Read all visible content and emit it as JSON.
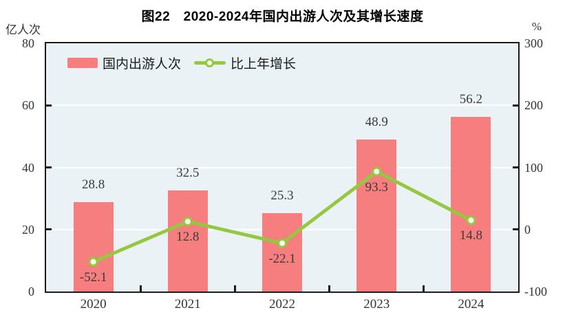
{
  "title": "图22　2020-2024年国内出游人次及其增长速度",
  "chart_data": {
    "type": "bar+line",
    "title": "图22　2020-2024年国内出游人次及其增长速度",
    "categories": [
      "2020",
      "2021",
      "2022",
      "2023",
      "2024"
    ],
    "series": [
      {
        "name": "国内出游人次",
        "type": "bar",
        "axis": "left",
        "unit": "亿人次",
        "values": [
          28.8,
          32.5,
          25.3,
          48.9,
          56.2
        ],
        "labels": [
          "28.8",
          "32.5",
          "25.3",
          "48.9",
          "56.2"
        ],
        "color": "#F67E7E"
      },
      {
        "name": "比上年增长",
        "type": "line",
        "axis": "right",
        "unit": "%",
        "values": [
          -52.1,
          12.8,
          -22.1,
          93.3,
          14.8
        ],
        "labels": [
          "-52.1",
          "12.8",
          "-22.1",
          "93.3",
          "14.8"
        ],
        "color": "#93C83F",
        "marker_fill": "#FDFEF4"
      }
    ],
    "left_axis": {
      "unit": "亿人次",
      "min": 0,
      "max": 80,
      "ticks": [
        0,
        20,
        40,
        60,
        80
      ]
    },
    "right_axis": {
      "unit": "%",
      "min": -100,
      "max": 300,
      "ticks": [
        -100,
        0,
        100,
        200,
        300
      ]
    },
    "grid": true,
    "legend_position": "top-left-inside",
    "colors": {
      "plot_bg": "#EAF2F6",
      "grid": "#FFFFFF",
      "axis": "#1A1A1A",
      "text": "#333333"
    }
  }
}
